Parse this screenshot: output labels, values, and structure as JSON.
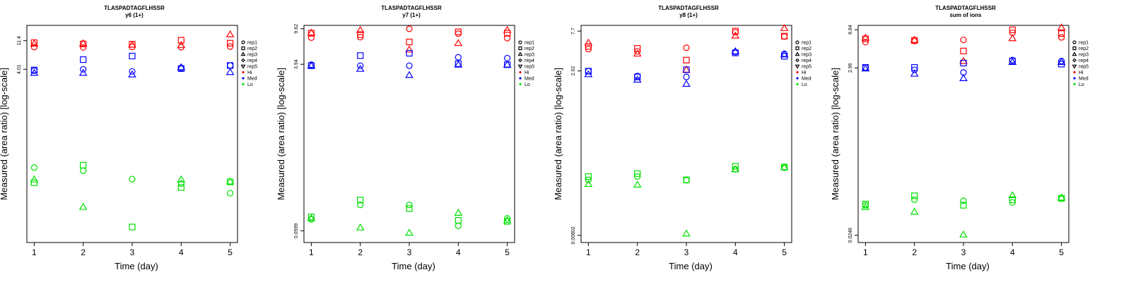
{
  "colors": {
    "Hi": "#ff0000",
    "Med": "#0000ff",
    "Lo": "#00e000"
  },
  "legend": {
    "reps": [
      {
        "label": "rep1",
        "shape": "circle"
      },
      {
        "label": "rep2",
        "shape": "square"
      },
      {
        "label": "rep3",
        "shape": "triangle-up"
      },
      {
        "label": "rep4",
        "shape": "diamond"
      },
      {
        "label": "rep5",
        "shape": "triangle-down"
      }
    ],
    "levels": [
      {
        "label": "Hi",
        "color": "#ff0000"
      },
      {
        "label": "Med",
        "color": "#0000ff"
      },
      {
        "label": "Lo",
        "color": "#00e000"
      }
    ]
  },
  "chart_data": [
    {
      "type": "scatter",
      "title": "TLASPADTAGFLHSSR",
      "subtitle": "y6 (1+)",
      "xlabel": "Time (day)",
      "ylabel": "Measured (area ratio) [log-scale]",
      "y_scale": "log",
      "x_ticks": [
        1,
        2,
        3,
        4,
        5
      ],
      "y_ticks": [
        {
          "value": 11.4,
          "label": "11.4"
        },
        {
          "value": 4.01,
          "label": "4.01"
        }
      ],
      "ylim_log10": [
        -2.15,
        1.3
      ],
      "grid": false,
      "legend_position": "right",
      "series": [
        {
          "level": "Hi",
          "rep": "rep1",
          "points": [
            [
              1,
              9.0
            ],
            [
              2,
              8.9
            ],
            [
              3,
              9.1
            ],
            [
              4,
              9.0
            ],
            [
              5,
              9.2
            ]
          ]
        },
        {
          "level": "Hi",
          "rep": "rep2",
          "points": [
            [
              1,
              10.6
            ],
            [
              2,
              10.1
            ],
            [
              3,
              10.0
            ],
            [
              4,
              11.6
            ],
            [
              5,
              10.4
            ]
          ]
        },
        {
          "level": "Hi",
          "rep": "rep3",
          "points": [
            [
              1,
              10.2
            ],
            [
              2,
              10.3
            ],
            [
              3,
              9.8
            ],
            [
              4,
              9.7
            ],
            [
              5,
              14.3
            ]
          ]
        },
        {
          "level": "Med",
          "rep": "rep1",
          "points": [
            [
              1,
              3.8
            ],
            [
              2,
              4.0
            ],
            [
              3,
              3.7
            ],
            [
              4,
              4.2
            ],
            [
              5,
              4.6
            ]
          ]
        },
        {
          "level": "Med",
          "rep": "rep2",
          "points": [
            [
              1,
              3.9
            ],
            [
              2,
              5.7
            ],
            [
              3,
              6.5
            ],
            [
              4,
              4.1
            ],
            [
              5,
              4.6
            ]
          ]
        },
        {
          "level": "Med",
          "rep": "rep3",
          "points": [
            [
              1,
              3.5
            ],
            [
              2,
              3.5
            ],
            [
              3,
              3.3
            ],
            [
              4,
              4.3
            ],
            [
              5,
              3.6
            ]
          ]
        },
        {
          "level": "Lo",
          "rep": "rep1",
          "points": [
            [
              1,
              0.11
            ],
            [
              2,
              0.098
            ],
            [
              3,
              0.072
            ],
            [
              4,
              0.061
            ],
            [
              5,
              0.043
            ]
          ]
        },
        {
          "level": "Lo",
          "rep": "rep2",
          "points": [
            [
              1,
              0.063
            ],
            [
              2,
              0.12
            ],
            [
              3,
              0.0125
            ],
            [
              4,
              0.053
            ],
            [
              5,
              0.065
            ]
          ]
        },
        {
          "level": "Lo",
          "rep": "rep3",
          "points": [
            [
              1,
              0.071
            ],
            [
              2,
              0.026
            ],
            [
              3,
              null
            ],
            [
              4,
              0.071
            ],
            [
              5,
              0.066
            ]
          ]
        }
      ]
    },
    {
      "type": "scatter",
      "title": "TLASPADTAGFLHSSR",
      "subtitle": "y7 (1+)",
      "xlabel": "Time (day)",
      "ylabel": "Measured (area ratio) [log-scale]",
      "y_scale": "log",
      "x_ticks": [
        1,
        2,
        3,
        4,
        5
      ],
      "y_ticks": [
        {
          "value": 9.62,
          "label": "9.62"
        },
        {
          "value": 3.94,
          "label": "3.94"
        },
        {
          "value": 0.0599,
          "label": "0.0599"
        }
      ],
      "ylim_log10": [
        -1.35,
        1.02
      ],
      "grid": false,
      "legend_position": "right",
      "series": [
        {
          "level": "Hi",
          "rep": "rep1",
          "points": [
            [
              1,
              7.7
            ],
            [
              2,
              7.8
            ],
            [
              3,
              9.6
            ],
            [
              4,
              8.5
            ],
            [
              5,
              7.6
            ]
          ]
        },
        {
          "level": "Hi",
          "rep": "rep2",
          "points": [
            [
              1,
              8.6
            ],
            [
              2,
              8.3
            ],
            [
              3,
              6.9
            ],
            [
              4,
              8.9
            ],
            [
              5,
              8.6
            ]
          ]
        },
        {
          "level": "Hi",
          "rep": "rep3",
          "points": [
            [
              1,
              8.7
            ],
            [
              2,
              9.3
            ],
            [
              3,
              5.7
            ],
            [
              4,
              6.7
            ],
            [
              5,
              9.3
            ]
          ]
        },
        {
          "level": "Med",
          "rep": "rep1",
          "points": [
            [
              1,
              3.9
            ],
            [
              2,
              3.8
            ],
            [
              3,
              3.8
            ],
            [
              4,
              4.7
            ],
            [
              5,
              4.6
            ]
          ]
        },
        {
          "level": "Med",
          "rep": "rep2",
          "points": [
            [
              1,
              3.8
            ],
            [
              2,
              4.9
            ],
            [
              3,
              5.2
            ],
            [
              4,
              4.0
            ],
            [
              5,
              3.9
            ]
          ]
        },
        {
          "level": "Med",
          "rep": "rep3",
          "points": [
            [
              1,
              3.8
            ],
            [
              2,
              3.5
            ],
            [
              3,
              3.0
            ],
            [
              4,
              3.9
            ],
            [
              5,
              3.9
            ]
          ]
        },
        {
          "level": "Lo",
          "rep": "rep1",
          "points": [
            [
              1,
              0.08
            ],
            [
              2,
              0.115
            ],
            [
              3,
              0.115
            ],
            [
              4,
              0.068
            ],
            [
              5,
              0.082
            ]
          ]
        },
        {
          "level": "Lo",
          "rep": "rep2",
          "points": [
            [
              1,
              0.085
            ],
            [
              2,
              0.13
            ],
            [
              3,
              0.105
            ],
            [
              4,
              0.078
            ],
            [
              5,
              0.076
            ]
          ]
        },
        {
          "level": "Lo",
          "rep": "rep3",
          "points": [
            [
              1,
              0.082
            ],
            [
              2,
              0.065
            ],
            [
              3,
              0.057
            ],
            [
              4,
              0.094
            ],
            [
              5,
              0.078
            ]
          ]
        }
      ]
    },
    {
      "type": "scatter",
      "title": "TLASPADTAGFLHSSR",
      "subtitle": "y8 (1+)",
      "xlabel": "Time (day)",
      "ylabel": "Measured (area ratio) [log-scale]",
      "y_scale": "log",
      "x_ticks": [
        1,
        2,
        3,
        4,
        5
      ],
      "y_ticks": [
        {
          "value": 7.7,
          "label": "7.7"
        },
        {
          "value": 2.02,
          "label": "2.02"
        },
        {
          "value": 0.00802,
          "label": "0.00802"
        }
      ],
      "ylim_log10": [
        -2.2,
        0.97
      ],
      "grid": false,
      "legend_position": "right",
      "series": [
        {
          "level": "Hi",
          "rep": "rep1",
          "points": [
            [
              1,
              4.2
            ],
            [
              2,
              3.9
            ],
            [
              3,
              4.4
            ],
            [
              4,
              7.4
            ],
            [
              5,
              6.4
            ]
          ]
        },
        {
          "level": "Hi",
          "rep": "rep2",
          "points": [
            [
              1,
              4.6
            ],
            [
              2,
              4.3
            ],
            [
              3,
              2.9
            ],
            [
              4,
              7.7
            ],
            [
              5,
              6.5
            ]
          ]
        },
        {
          "level": "Hi",
          "rep": "rep3",
          "points": [
            [
              1,
              5.2
            ],
            [
              2,
              3.6
            ],
            [
              3,
              2.1
            ],
            [
              4,
              6.6
            ],
            [
              5,
              8.5
            ]
          ]
        },
        {
          "level": "Med",
          "rep": "rep1",
          "points": [
            [
              1,
              2.0
            ],
            [
              2,
              1.7
            ],
            [
              3,
              1.65
            ],
            [
              4,
              3.8
            ],
            [
              5,
              3.6
            ]
          ]
        },
        {
          "level": "Med",
          "rep": "rep2",
          "points": [
            [
              1,
              2.0
            ],
            [
              2,
              1.65
            ],
            [
              3,
              2.1
            ],
            [
              4,
              3.7
            ],
            [
              5,
              3.3
            ]
          ]
        },
        {
          "level": "Med",
          "rep": "rep3",
          "points": [
            [
              1,
              1.8
            ],
            [
              2,
              1.5
            ],
            [
              3,
              1.3
            ],
            [
              4,
              3.9
            ],
            [
              5,
              3.5
            ]
          ]
        },
        {
          "level": "Lo",
          "rep": "rep1",
          "points": [
            [
              1,
              0.052
            ],
            [
              2,
              0.058
            ],
            [
              3,
              0.051
            ],
            [
              4,
              0.074
            ],
            [
              5,
              0.078
            ]
          ]
        },
        {
          "level": "Lo",
          "rep": "rep2",
          "points": [
            [
              1,
              0.058
            ],
            [
              2,
              0.064
            ],
            [
              3,
              0.052
            ],
            [
              4,
              0.082
            ],
            [
              5,
              0.08
            ]
          ]
        },
        {
          "level": "Lo",
          "rep": "rep3",
          "points": [
            [
              1,
              0.045
            ],
            [
              2,
              0.044
            ],
            [
              3,
              0.0085
            ],
            [
              4,
              0.074
            ],
            [
              5,
              0.079
            ]
          ]
        }
      ]
    },
    {
      "type": "scatter",
      "title": "TLASPADTAGFLHSSR",
      "subtitle": "sum of ions",
      "xlabel": "Time (day)",
      "ylabel": "Measured (area ratio) [log-scale]",
      "y_scale": "log",
      "x_ticks": [
        1,
        2,
        3,
        4,
        5
      ],
      "y_ticks": [
        {
          "value": 8.84,
          "label": "8.84"
        },
        {
          "value": 2.96,
          "label": "2.96"
        },
        {
          "value": 0.0246,
          "label": "0.0246"
        }
      ],
      "ylim_log10": [
        -1.7,
        1.0
      ],
      "grid": false,
      "legend_position": "right",
      "series": [
        {
          "level": "Hi",
          "rep": "rep1",
          "points": [
            [
              1,
              6.2
            ],
            [
              2,
              6.4
            ],
            [
              3,
              6.6
            ],
            [
              4,
              8.1
            ],
            [
              5,
              7.1
            ]
          ]
        },
        {
          "level": "Hi",
          "rep": "rep2",
          "points": [
            [
              1,
              6.8
            ],
            [
              2,
              6.5
            ],
            [
              3,
              4.8
            ],
            [
              4,
              8.8
            ],
            [
              5,
              7.9
            ]
          ]
        },
        {
          "level": "Hi",
          "rep": "rep3",
          "points": [
            [
              1,
              7.0
            ],
            [
              2,
              6.6
            ],
            [
              3,
              3.6
            ],
            [
              4,
              6.9
            ],
            [
              5,
              9.4
            ]
          ]
        },
        {
          "level": "Med",
          "rep": "rep1",
          "points": [
            [
              1,
              3.0
            ],
            [
              2,
              2.8
            ],
            [
              3,
              2.6
            ],
            [
              4,
              3.7
            ],
            [
              5,
              3.6
            ]
          ]
        },
        {
          "level": "Med",
          "rep": "rep2",
          "points": [
            [
              1,
              3.0
            ],
            [
              2,
              3.0
            ],
            [
              3,
              3.4
            ],
            [
              4,
              3.6
            ],
            [
              5,
              3.3
            ]
          ]
        },
        {
          "level": "Med",
          "rep": "rep3",
          "points": [
            [
              1,
              2.9
            ],
            [
              2,
              2.5
            ],
            [
              3,
              2.2
            ],
            [
              4,
              3.5
            ],
            [
              5,
              3.5
            ]
          ]
        },
        {
          "level": "Lo",
          "rep": "rep1",
          "points": [
            [
              1,
              0.058
            ],
            [
              2,
              0.068
            ],
            [
              3,
              0.066
            ],
            [
              4,
              0.063
            ],
            [
              5,
              0.07
            ]
          ]
        },
        {
          "level": "Lo",
          "rep": "rep2",
          "points": [
            [
              1,
              0.06
            ],
            [
              2,
              0.076
            ],
            [
              3,
              0.058
            ],
            [
              4,
              0.068
            ],
            [
              5,
              0.071
            ]
          ]
        },
        {
          "level": "Lo",
          "rep": "rep3",
          "points": [
            [
              1,
              0.055
            ],
            [
              2,
              0.048
            ],
            [
              3,
              0.025
            ],
            [
              4,
              0.077
            ],
            [
              5,
              0.072
            ]
          ]
        }
      ]
    }
  ]
}
